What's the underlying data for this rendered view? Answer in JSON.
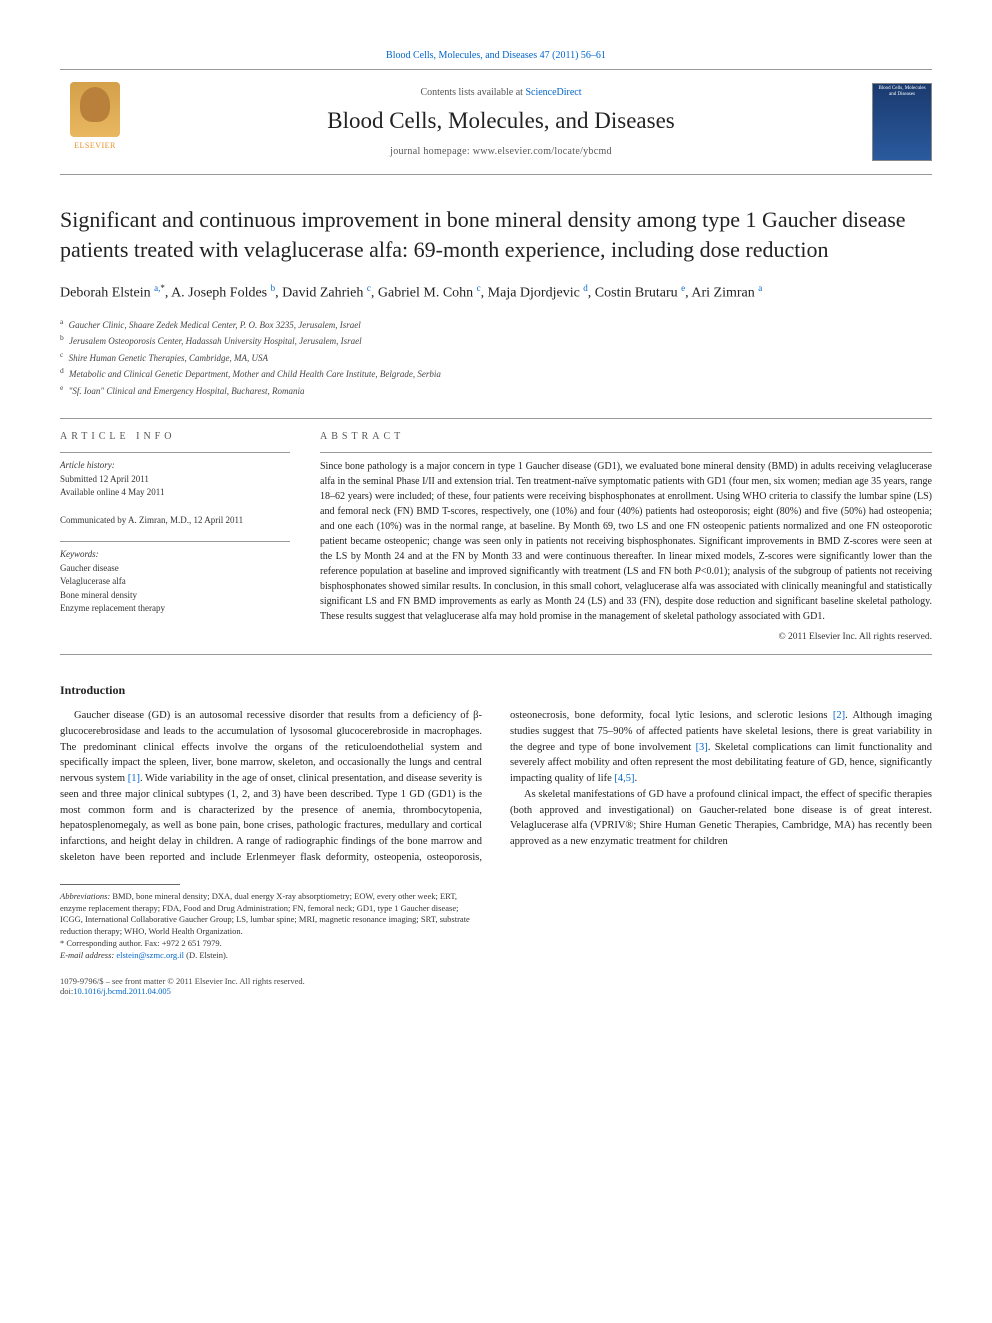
{
  "topLink": {
    "prefix": "Blood Cells, Molecules, and Diseases 47 (2011) 56–61",
    "href": "#"
  },
  "header": {
    "contentsPrefix": "Contents lists available at ",
    "contentsLink": "ScienceDirect",
    "journalName": "Blood Cells, Molecules, and Diseases",
    "homepagePrefix": "journal homepage: ",
    "homepageUrl": "www.elsevier.com/locate/ybcmd",
    "elsevierLabel": "ELSEVIER",
    "coverTitle": "Blood Cells, Molecules and Diseases"
  },
  "article": {
    "title": "Significant and continuous improvement in bone mineral density among type 1 Gaucher disease patients treated with velaglucerase alfa: 69-month experience, including dose reduction",
    "authorsHtml": "Deborah Elstein <sup>a,</sup><sup class='sup-star'>*</sup>, A. Joseph Foldes <sup>b</sup>, David Zahrieh <sup>c</sup>, Gabriel M. Cohn <sup>c</sup>, Maja Djordjevic <sup>d</sup>, Costin Brutaru <sup>e</sup>, Ari Zimran <sup>a</sup>",
    "affiliations": [
      {
        "sup": "a",
        "text": "Gaucher Clinic, Shaare Zedek Medical Center, P. O. Box 3235, Jerusalem, Israel"
      },
      {
        "sup": "b",
        "text": "Jerusalem Osteoporosis Center, Hadassah University Hospital, Jerusalem, Israel"
      },
      {
        "sup": "c",
        "text": "Shire Human Genetic Therapies, Cambridge, MA, USA"
      },
      {
        "sup": "d",
        "text": "Metabolic and Clinical Genetic Department, Mother and Child Health Care Institute, Belgrade, Serbia"
      },
      {
        "sup": "e",
        "text": "\"Sf. Ioan\" Clinical and Emergency Hospital, Bucharest, Romania"
      }
    ]
  },
  "articleInfo": {
    "head": "ARTICLE INFO",
    "historyLabel": "Article history:",
    "submitted": "Submitted 12 April 2011",
    "online": "Available online 4 May 2011",
    "communicated": "Communicated by A. Zimran, M.D., 12 April 2011",
    "keywordsLabel": "Keywords:",
    "keywords": [
      "Gaucher disease",
      "Velaglucerase alfa",
      "Bone mineral density",
      "Enzyme replacement therapy"
    ]
  },
  "abstract": {
    "head": "ABSTRACT",
    "text": "Since bone pathology is a major concern in type 1 Gaucher disease (GD1), we evaluated bone mineral density (BMD) in adults receiving velaglucerase alfa in the seminal Phase I/II and extension trial. Ten treatment-naïve symptomatic patients with GD1 (four men, six women; median age 35 years, range 18–62 years) were included; of these, four patients were receiving bisphosphonates at enrollment. Using WHO criteria to classify the lumbar spine (LS) and femoral neck (FN) BMD T-scores, respectively, one (10%) and four (40%) patients had osteoporosis; eight (80%) and five (50%) had osteopenia; and one each (10%) was in the normal range, at baseline. By Month 69, two LS and one FN osteopenic patients normalized and one FN osteoporotic patient became osteopenic; change was seen only in patients not receiving bisphosphonates. Significant improvements in BMD Z-scores were seen at the LS by Month 24 and at the FN by Month 33 and were continuous thereafter. In linear mixed models, Z-scores were significantly lower than the reference population at baseline and improved significantly with treatment (LS and FN both P<0.01); analysis of the subgroup of patients not receiving bisphosphonates showed similar results. In conclusion, in this small cohort, velaglucerase alfa was associated with clinically meaningful and statistically significant LS and FN BMD improvements as early as Month 24 (LS) and 33 (FN), despite dose reduction and significant baseline skeletal pathology. These results suggest that velaglucerase alfa may hold promise in the management of skeletal pathology associated with GD1.",
    "copyright": "© 2011 Elsevier Inc. All rights reserved."
  },
  "introduction": {
    "head": "Introduction",
    "para1": "Gaucher disease (GD) is an autosomal recessive disorder that results from a deficiency of β-glucocerebrosidase and leads to the accumulation of lysosomal glucocerebroside in macrophages. The predominant clinical effects involve the organs of the reticuloendothelial system and specifically impact the spleen, liver, bone marrow, skeleton, and occasionally the lungs and central nervous system ",
    "ref1": "[1]",
    "para1b": ". Wide variability in the age of onset, clinical presentation, and disease severity is seen and three major clinical subtypes (1, 2, and 3) have",
    "para2a": "been described. Type 1 GD (GD1) is the most common form and is characterized by the presence of anemia, thrombocytopenia, hepatosplenomegaly, as well as bone pain, bone crises, pathologic fractures, medullary and cortical infarctions, and height delay in children. A range of radiographic findings of the bone marrow and skeleton have been reported and include Erlenmeyer flask deformity, osteopenia, osteoporosis, osteonecrosis, bone deformity, focal lytic lesions, and sclerotic lesions ",
    "ref2": "[2]",
    "para2b": ". Although imaging studies suggest that 75–90% of affected patients have skeletal lesions, there is great variability in the degree and type of bone involvement ",
    "ref3": "[3]",
    "para2c": ". Skeletal complications can limit functionality and severely affect mobility and often represent the most debilitating feature of GD, hence, significantly impacting quality of life ",
    "ref45": "[4,5]",
    "para2d": ".",
    "para3": "As skeletal manifestations of GD have a profound clinical impact, the effect of specific therapies (both approved and investigational) on Gaucher-related bone disease is of great interest. Velaglucerase alfa (VPRIV®; Shire Human Genetic Therapies, Cambridge, MA) has recently been approved as a new enzymatic treatment for children"
  },
  "footnotes": {
    "abbrevLabel": "Abbreviations:",
    "abbrevText": " BMD, bone mineral density; DXA, dual energy X-ray absorptiometry; EOW, every other week; ERT, enzyme replacement therapy; FDA, Food and Drug Administration; FN, femoral neck; GD1, type 1 Gaucher disease; ICGG, International Collaborative Gaucher Group; LS, lumbar spine; MRI, magnetic resonance imaging; SRT, substrate reduction therapy; WHO, World Health Organization.",
    "corrLabel": "* Corresponding author. Fax: +972 2 651 7979.",
    "emailLabel": "E-mail address:",
    "email": "elstein@szmc.org.il",
    "emailSuffix": " (D. Elstein)."
  },
  "footer": {
    "line1": "1079-9796/$ – see front matter © 2011 Elsevier Inc. All rights reserved.",
    "doiPrefix": "doi:",
    "doi": "10.1016/j.bcmd.2011.04.005"
  }
}
